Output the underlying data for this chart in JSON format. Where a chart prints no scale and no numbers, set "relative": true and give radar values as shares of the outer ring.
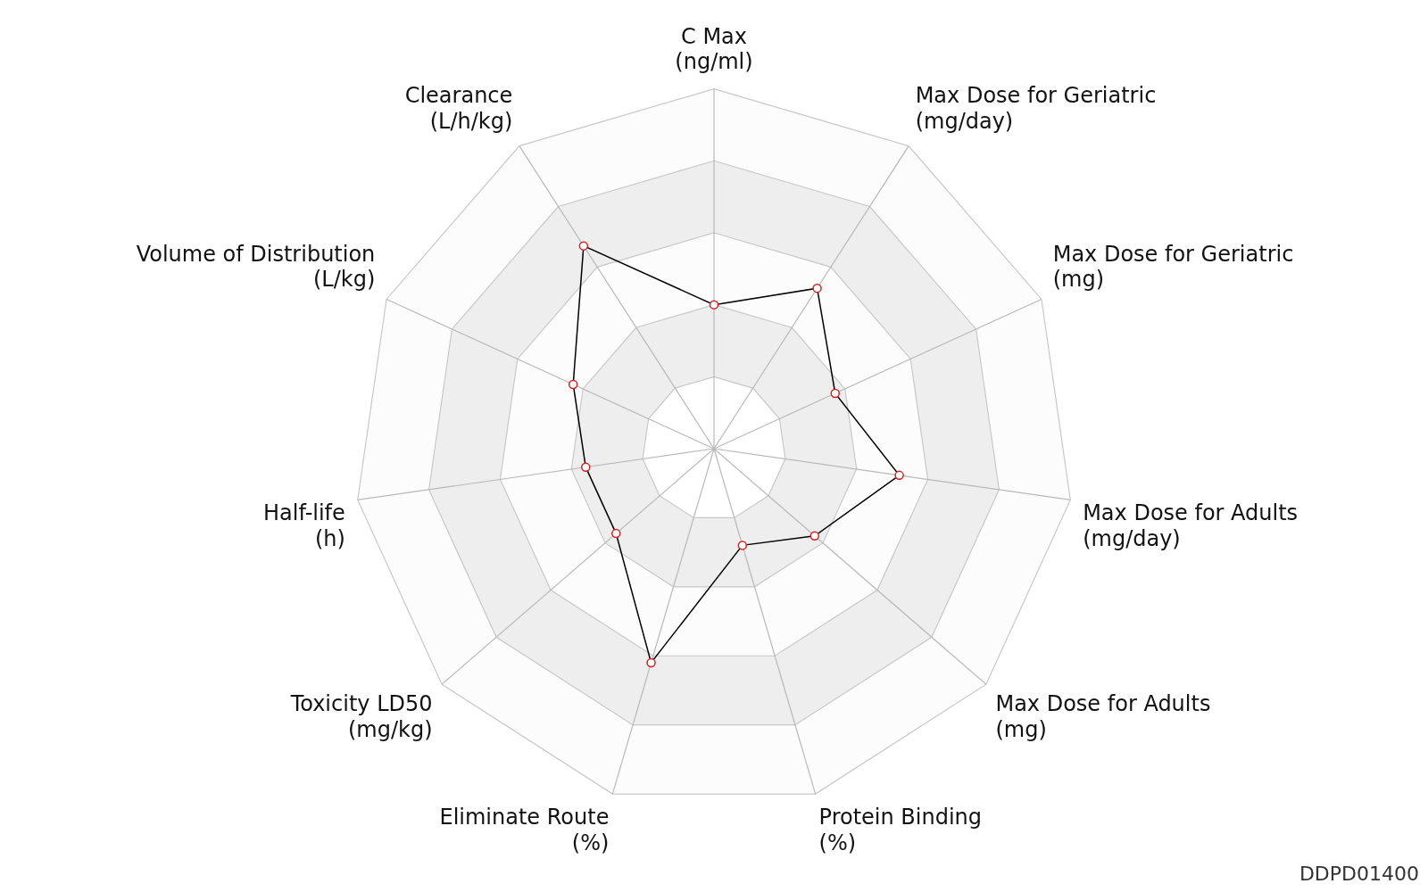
{
  "chart_data": {
    "type": "radar",
    "relative": true,
    "marker": "circle",
    "grid": true,
    "categories": [
      "C Max\n(ng/ml)",
      "Max Dose for Geriatric\n(mg/day)",
      "Max Dose for Geriatric\n(mg)",
      "Max Dose for Adults\n(mg/day)",
      "Max Dose for Adults\n(mg)",
      "Protein Binding\n(%)",
      "Eliminate Route\n(%)",
      "Toxicity LD50\n(mg/kg)",
      "Half-life\n(h)",
      "Volume of Distribution\n(L/kg)",
      "Clearance\n(L/h/kg)"
    ],
    "series": [
      {
        "color": "#000000",
        "values": [
          0.4,
          0.53,
          0.37,
          0.52,
          0.37,
          0.28,
          0.62,
          0.36,
          0.36,
          0.43,
          0.67
        ]
      }
    ],
    "annotations": [
      "DDPD01400"
    ]
  }
}
